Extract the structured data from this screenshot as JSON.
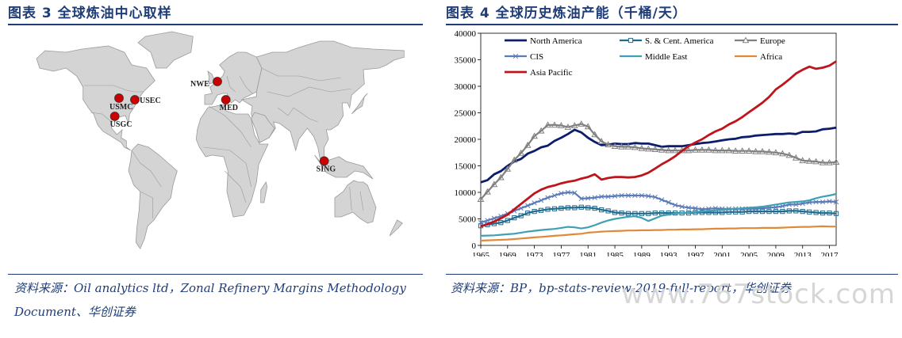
{
  "figure3": {
    "title": "图表 3   全球炼油中心取样",
    "source_line1": "资料来源：Oil analytics ltd，Zonal Refinery Margins Methodology",
    "source_line2": "Document、华创证券",
    "hubs": [
      {
        "label": "NWE",
        "lon": 3.0,
        "lat": 51.5
      },
      {
        "label": "USEC",
        "lon": -75.0,
        "lat": 40.0
      },
      {
        "label": "USMC",
        "lon": -90.0,
        "lat": 41.0
      },
      {
        "label": "USGC",
        "lon": -94.0,
        "lat": 29.5
      },
      {
        "label": "MED",
        "lon": 11.0,
        "lat": 40.0
      },
      {
        "label": "SING",
        "lon": 104.0,
        "lat": 1.3
      }
    ],
    "colors": {
      "land": "#d4d4d4",
      "border": "#9a9a9a",
      "marker": "#cc0000"
    }
  },
  "figure4": {
    "title": "图表 4   全球历史炼油产能（千桶/天）",
    "source": "资料来源：BP，bp-stats-review-2019-full-report，华创证券"
  },
  "watermark": "www.767stock.com",
  "chart_data": {
    "type": "line",
    "x": [
      1965,
      1966,
      1967,
      1968,
      1969,
      1970,
      1971,
      1972,
      1973,
      1974,
      1975,
      1976,
      1977,
      1978,
      1979,
      1980,
      1981,
      1982,
      1983,
      1984,
      1985,
      1986,
      1987,
      1988,
      1989,
      1990,
      1991,
      1992,
      1993,
      1994,
      1995,
      1996,
      1997,
      1998,
      1999,
      2000,
      2001,
      2002,
      2003,
      2004,
      2005,
      2006,
      2007,
      2008,
      2009,
      2010,
      2011,
      2012,
      2013,
      2014,
      2015,
      2016,
      2017,
      2018
    ],
    "xticks": [
      1965,
      1969,
      1973,
      1977,
      1981,
      1985,
      1989,
      1993,
      1997,
      2001,
      2005,
      2009,
      2013,
      2017
    ],
    "ylim": [
      0,
      40000
    ],
    "yticks": [
      0,
      5000,
      10000,
      15000,
      20000,
      25000,
      30000,
      35000,
      40000
    ],
    "legend_placement": "top",
    "series": [
      {
        "name": "North America",
        "color": "#0b1d6b",
        "marker": "none",
        "values": [
          11900,
          12300,
          13400,
          14000,
          15000,
          15800,
          16300,
          17300,
          17800,
          18500,
          18800,
          19700,
          20300,
          21000,
          21800,
          21300,
          20300,
          19500,
          18900,
          19000,
          19200,
          19100,
          19100,
          19300,
          19200,
          19200,
          18900,
          18600,
          18700,
          18700,
          18700,
          18900,
          19100,
          19300,
          19400,
          19600,
          19800,
          20000,
          20100,
          20400,
          20500,
          20700,
          20800,
          20900,
          21000,
          21000,
          21100,
          21000,
          21400,
          21400,
          21500,
          21900,
          22000,
          22200
        ]
      },
      {
        "name": "S. & Cent. America",
        "color": "#1f6b8f",
        "marker": "square",
        "values": [
          3700,
          3900,
          4100,
          4300,
          4700,
          5200,
          5600,
          6100,
          6400,
          6600,
          6800,
          6900,
          7000,
          7100,
          7100,
          7200,
          7100,
          7000,
          6700,
          6500,
          6200,
          6100,
          6000,
          6000,
          6000,
          6000,
          6100,
          6100,
          6100,
          6100,
          6100,
          6100,
          6200,
          6200,
          6200,
          6200,
          6200,
          6300,
          6300,
          6300,
          6400,
          6400,
          6400,
          6400,
          6400,
          6400,
          6500,
          6500,
          6400,
          6300,
          6200,
          6100,
          6100,
          6000
        ]
      },
      {
        "name": "Europe",
        "color": "#808080",
        "marker": "triangle",
        "values": [
          8700,
          10100,
          11500,
          12800,
          14400,
          16100,
          17400,
          18900,
          20600,
          21600,
          22700,
          22700,
          22600,
          22300,
          22600,
          22900,
          22400,
          20900,
          19600,
          19000,
          18700,
          18600,
          18600,
          18500,
          18300,
          18200,
          18100,
          18000,
          17900,
          17900,
          17900,
          17900,
          18000,
          18000,
          18000,
          17900,
          17900,
          17900,
          17800,
          17800,
          17800,
          17700,
          17700,
          17600,
          17500,
          17300,
          17000,
          16500,
          16000,
          15900,
          15800,
          15600,
          15600,
          15700
        ]
      },
      {
        "name": "CIS",
        "color": "#5b7bb8",
        "marker": "x",
        "values": [
          4300,
          4700,
          5100,
          5500,
          6000,
          6500,
          7000,
          7500,
          8000,
          8500,
          9000,
          9400,
          9800,
          10000,
          9900,
          8800,
          8900,
          9000,
          9200,
          9200,
          9300,
          9400,
          9400,
          9400,
          9400,
          9300,
          9100,
          8600,
          8100,
          7600,
          7300,
          7100,
          7000,
          6800,
          6900,
          7000,
          6900,
          6900,
          6900,
          6900,
          6900,
          6900,
          7000,
          7100,
          7200,
          7400,
          7700,
          7700,
          7900,
          8100,
          8200,
          8200,
          8300,
          8200
        ]
      },
      {
        "name": "Middle East",
        "color": "#3fa0b5",
        "marker": "none",
        "values": [
          1800,
          1850,
          1900,
          2000,
          2100,
          2200,
          2400,
          2600,
          2750,
          2900,
          3000,
          3100,
          3300,
          3500,
          3400,
          3200,
          3400,
          3800,
          4300,
          4700,
          5000,
          5200,
          5400,
          5500,
          5200,
          4600,
          5100,
          5600,
          5800,
          6000,
          6100,
          6200,
          6300,
          6400,
          6500,
          6600,
          6700,
          6800,
          6900,
          7000,
          7100,
          7200,
          7300,
          7500,
          7700,
          7900,
          8100,
          8200,
          8300,
          8500,
          8900,
          9200,
          9400,
          9700
        ]
      },
      {
        "name": "Africa",
        "color": "#e0893a",
        "marker": "none",
        "values": [
          900,
          950,
          1000,
          1050,
          1100,
          1200,
          1300,
          1400,
          1500,
          1600,
          1700,
          1800,
          1900,
          2000,
          2100,
          2200,
          2400,
          2500,
          2600,
          2650,
          2700,
          2750,
          2800,
          2800,
          2850,
          2850,
          2900,
          2900,
          2950,
          2950,
          3000,
          3000,
          3050,
          3050,
          3100,
          3150,
          3150,
          3200,
          3200,
          3250,
          3250,
          3250,
          3300,
          3300,
          3300,
          3350,
          3400,
          3450,
          3500,
          3500,
          3550,
          3600,
          3550,
          3550
        ]
      },
      {
        "name": "Asia Pacific",
        "color": "#c0141c",
        "marker": "none",
        "values": [
          3600,
          4000,
          4500,
          5100,
          5800,
          6800,
          7800,
          8800,
          9800,
          10500,
          11000,
          11300,
          11700,
          12000,
          12200,
          12600,
          12900,
          13400,
          12400,
          12700,
          12900,
          12900,
          12800,
          12900,
          13200,
          13700,
          14500,
          15300,
          16000,
          16800,
          17800,
          18700,
          19400,
          20000,
          20800,
          21500,
          22000,
          22800,
          23400,
          24200,
          25100,
          26000,
          26900,
          28000,
          29400,
          30300,
          31300,
          32400,
          33100,
          33700,
          33300,
          33500,
          33900,
          34700
        ]
      }
    ]
  }
}
